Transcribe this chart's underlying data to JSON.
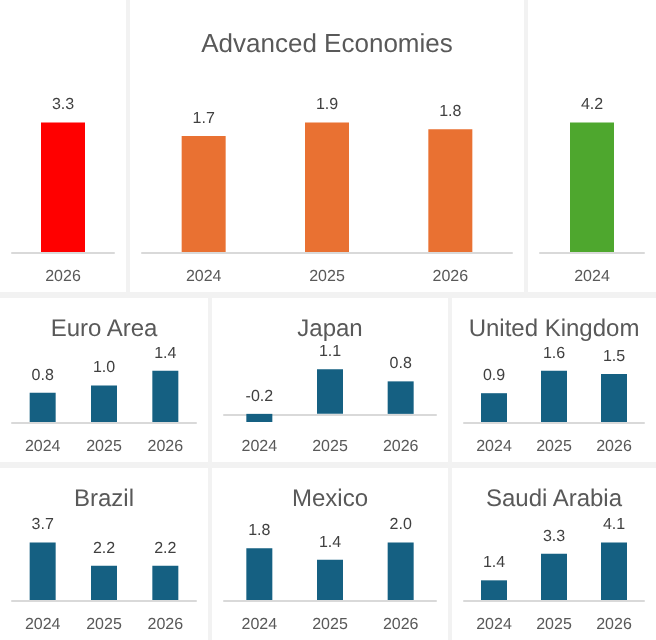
{
  "chart_data": [
    {
      "type": "bar",
      "categories": [
        "2026"
      ],
      "series": [
        {
          "color": "#ff0000",
          "values": [
            3.3
          ],
          "value_labels": [
            "3.3"
          ]
        }
      ]
    },
    {
      "type": "bar",
      "title": "Advanced Economies",
      "categories": [
        "2024",
        "2025",
        "2026"
      ],
      "series": [
        {
          "color": "#e97132",
          "values": [
            1.7,
            1.9,
            1.8
          ],
          "value_labels": [
            "1.7",
            "1.9",
            "1.8"
          ]
        }
      ]
    },
    {
      "type": "bar",
      "categories": [
        "2024"
      ],
      "series": [
        {
          "color": "#4ea72e",
          "values": [
            4.2
          ],
          "value_labels": [
            "4.2"
          ]
        }
      ]
    },
    {
      "type": "bar",
      "title": "Euro Area",
      "categories": [
        "2024",
        "2025",
        "2026"
      ],
      "series": [
        {
          "color": "#156082",
          "values": [
            0.8,
            1.0,
            1.4
          ],
          "value_labels": [
            "0.8",
            "1.0",
            "1.4"
          ]
        }
      ]
    },
    {
      "type": "bar",
      "title": "Japan",
      "categories": [
        "2024",
        "2025",
        "2026"
      ],
      "series": [
        {
          "color": "#156082",
          "values": [
            -0.2,
            1.1,
            0.8
          ],
          "value_labels": [
            "-0.2",
            "1.1",
            "0.8"
          ]
        }
      ]
    },
    {
      "type": "bar",
      "title": "United Kingdom",
      "categories": [
        "2024",
        "2025",
        "2026"
      ],
      "series": [
        {
          "color": "#156082",
          "values": [
            0.9,
            1.6,
            1.5
          ],
          "value_labels": [
            "0.9",
            "1.6",
            "1.5"
          ]
        }
      ]
    },
    {
      "type": "bar",
      "title": "Brazil",
      "categories": [
        "2024",
        "2025",
        "2026"
      ],
      "series": [
        {
          "color": "#156082",
          "values": [
            3.7,
            2.2,
            2.2
          ],
          "value_labels": [
            "3.7",
            "2.2",
            "2.2"
          ]
        }
      ]
    },
    {
      "type": "bar",
      "title": "Mexico",
      "categories": [
        "2024",
        "2025",
        "2026"
      ],
      "series": [
        {
          "color": "#156082",
          "values": [
            1.8,
            1.4,
            2.0
          ],
          "value_labels": [
            "1.8",
            "1.4",
            "2.0"
          ]
        }
      ]
    },
    {
      "type": "bar",
      "title": "Saudi Arabia",
      "categories": [
        "2024",
        "2025",
        "2026"
      ],
      "series": [
        {
          "color": "#156082",
          "values": [
            1.4,
            3.3,
            4.1
          ],
          "value_labels": [
            "1.4",
            "3.3",
            "4.1"
          ]
        }
      ]
    }
  ]
}
